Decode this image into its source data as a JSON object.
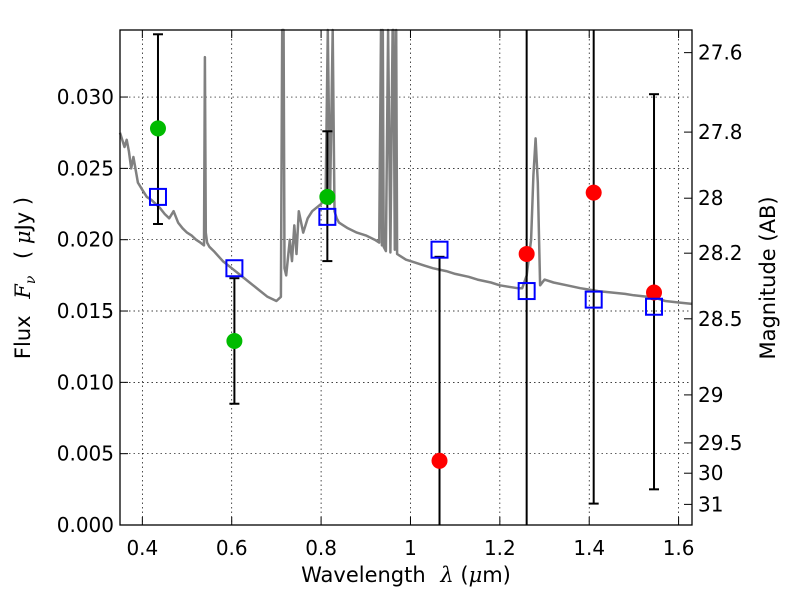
{
  "chart_data": {
    "type": "scatter",
    "xlabel_parts": [
      "Wavelength",
      "λ",
      " (",
      "μ",
      "m)"
    ],
    "ylabel_parts": [
      "Flux",
      "F",
      "ν",
      "( ",
      "μ",
      "Jy )"
    ],
    "y2label": "Magnitude (AB)",
    "xlim": [
      0.35,
      1.63
    ],
    "ylim": [
      0.0,
      0.0347
    ],
    "grid": true,
    "x_ticks": [
      0.4,
      0.6,
      0.8,
      1.0,
      1.2,
      1.4,
      1.6
    ],
    "x_tick_labels": [
      "0.4",
      "0.6",
      "0.8",
      "1",
      "1.2",
      "1.4",
      "1.6"
    ],
    "y_ticks": [
      0.0,
      0.005,
      0.01,
      0.015,
      0.02,
      0.025,
      0.03
    ],
    "y_tick_labels": [
      "0.000",
      "0.005",
      "0.010",
      "0.015",
      "0.020",
      "0.025",
      "0.030"
    ],
    "mag_ticks": [
      27.6,
      27.8,
      28,
      28.2,
      28.5,
      29,
      29.5,
      30,
      31
    ],
    "mag_tick_labels": [
      "27.6",
      "27.8",
      "28",
      "28.2",
      "28.5",
      "29",
      "29.5",
      "30",
      "31"
    ],
    "series": [
      {
        "color": "#00bb00",
        "marker": "circle",
        "points": [
          {
            "x": 0.435,
            "y": 0.0278
          },
          {
            "x": 0.606,
            "y": 0.0129
          },
          {
            "x": 0.814,
            "y": 0.023
          }
        ]
      },
      {
        "color": "#ff0000",
        "marker": "circle",
        "points": [
          {
            "x": 1.065,
            "y": 0.0045
          },
          {
            "x": 1.26,
            "y": 0.019
          },
          {
            "x": 1.41,
            "y": 0.0233
          },
          {
            "x": 1.545,
            "y": 0.0163
          }
        ]
      },
      {
        "color": "#0000ff",
        "marker": "open-square",
        "points": [
          {
            "x": 0.435,
            "y": 0.023
          },
          {
            "x": 0.606,
            "y": 0.018
          },
          {
            "x": 0.814,
            "y": 0.0216
          },
          {
            "x": 1.065,
            "y": 0.0193
          },
          {
            "x": 1.26,
            "y": 0.0164
          },
          {
            "x": 1.41,
            "y": 0.0158
          },
          {
            "x": 1.545,
            "y": 0.0153
          }
        ]
      }
    ],
    "error_bars": [
      {
        "x": 0.435,
        "low": 0.0211,
        "high": 0.0344
      },
      {
        "x": 0.606,
        "low": 0.0085,
        "high": 0.0173
      },
      {
        "x": 0.814,
        "low": 0.0185,
        "high": 0.0276
      },
      {
        "x": 1.065,
        "low": 0.0,
        "high": 0.0188
      },
      {
        "x": 1.26,
        "low": 0.0,
        "high": 0.0347
      },
      {
        "x": 1.41,
        "low": 0.0015,
        "high": 0.0347
      },
      {
        "x": 1.545,
        "low": 0.0025,
        "high": 0.0302
      }
    ],
    "model_spectrum": {
      "color": "#808080",
      "x": [
        0.35,
        0.36,
        0.365,
        0.37,
        0.375,
        0.38,
        0.39,
        0.4,
        0.41,
        0.42,
        0.43,
        0.44,
        0.45,
        0.46,
        0.47,
        0.48,
        0.49,
        0.5,
        0.51,
        0.52,
        0.53,
        0.538,
        0.54,
        0.542,
        0.545,
        0.55,
        0.56,
        0.58,
        0.6,
        0.62,
        0.64,
        0.66,
        0.68,
        0.7,
        0.71,
        0.713,
        0.716,
        0.718,
        0.722,
        0.73,
        0.735,
        0.74,
        0.745,
        0.75,
        0.76,
        0.77,
        0.78,
        0.8,
        0.81,
        0.815,
        0.82,
        0.826,
        0.83,
        0.835,
        0.84,
        0.85,
        0.86,
        0.88,
        0.9,
        0.92,
        0.93,
        0.934,
        0.936,
        0.938,
        0.94,
        0.945,
        0.95,
        0.955,
        0.96,
        0.962,
        0.965,
        0.968,
        0.97,
        0.975,
        0.98,
        0.99,
        1.0,
        1.03,
        1.05,
        1.08,
        1.1,
        1.13,
        1.15,
        1.18,
        1.2,
        1.22,
        1.24,
        1.25,
        1.26,
        1.27,
        1.275,
        1.28,
        1.285,
        1.29,
        1.3,
        1.32,
        1.35,
        1.38,
        1.4,
        1.42,
        1.45,
        1.48,
        1.5,
        1.53,
        1.55,
        1.57,
        1.6,
        1.63
      ],
      "y": [
        0.0275,
        0.0265,
        0.027,
        0.0262,
        0.025,
        0.0258,
        0.024,
        0.0235,
        0.023,
        0.0228,
        0.0225,
        0.0222,
        0.0218,
        0.0215,
        0.022,
        0.0212,
        0.0208,
        0.0205,
        0.0203,
        0.02,
        0.0198,
        0.0196,
        0.0328,
        0.0205,
        0.0198,
        0.0195,
        0.0192,
        0.0185,
        0.018,
        0.0175,
        0.017,
        0.0165,
        0.016,
        0.0157,
        0.016,
        0.0347,
        0.0347,
        0.018,
        0.0175,
        0.02,
        0.0185,
        0.021,
        0.019,
        0.022,
        0.0205,
        0.0215,
        0.022,
        0.0225,
        0.023,
        0.0347,
        0.0225,
        0.0347,
        0.022,
        0.0215,
        0.0212,
        0.021,
        0.0208,
        0.0205,
        0.0203,
        0.02,
        0.0198,
        0.0347,
        0.0196,
        0.0347,
        0.0195,
        0.0192,
        0.0347,
        0.0191,
        0.0347,
        0.0347,
        0.0193,
        0.0347,
        0.019,
        0.0189,
        0.0188,
        0.0186,
        0.0185,
        0.0182,
        0.018,
        0.0178,
        0.0176,
        0.0174,
        0.0172,
        0.017,
        0.0168,
        0.0167,
        0.0166,
        0.0166,
        0.0175,
        0.02,
        0.0245,
        0.0271,
        0.024,
        0.0168,
        0.0172,
        0.017,
        0.0168,
        0.0166,
        0.0165,
        0.0164,
        0.0163,
        0.0162,
        0.0161,
        0.016,
        0.0159,
        0.0157,
        0.0156,
        0.0155
      ]
    }
  }
}
